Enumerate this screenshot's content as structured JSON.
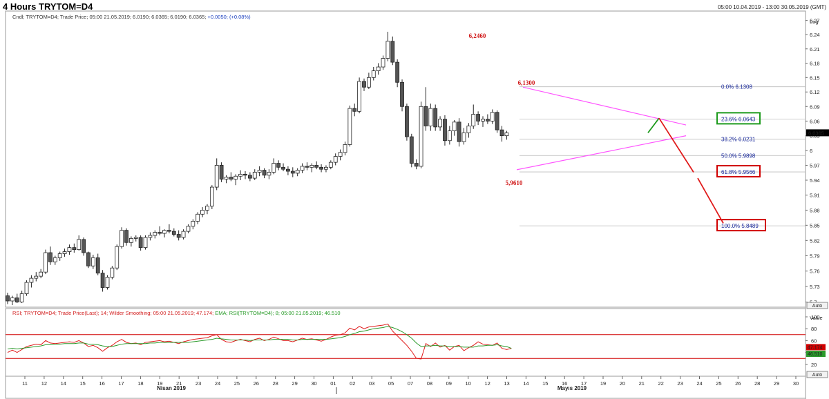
{
  "header": {
    "title": "4 Hours TRYTOM=D4",
    "range": "05:00 10.04.2019 - 13:00 30.05.2019 (GMT)"
  },
  "legend": {
    "price_prefix": "Cndl; TRYTOM=D4; Trade Price; 05:00 21.05.2019; 6.0190; 6.0365; 6.0190; 6.0365;",
    "price_change": "+0.0050; (+0.08%)",
    "rsi_text": "RSI; TRYTOM=D4; Trade Price(Last); 14; Wilder Smoothing; 05:00 21.05.2019; 47.174;",
    "ema_text": "EMA; RSI(TRYTOM=D4); 8; 05:00 21.05.2019; 46.510"
  },
  "colors": {
    "up": "#ffffff",
    "down": "#555555",
    "triangle": "#ff55ff",
    "projection": "#e01c1c",
    "green_leg": "#1c9a1c",
    "rsi": "#e01c1c",
    "ema": "#2b9a2b",
    "fib_box_green": "#1c9a1c",
    "fib_box_red": "#d00000"
  },
  "chart_data": {
    "type": "candlestick",
    "scale": "log",
    "ylim": [
      5.69,
      6.29
    ],
    "y_ticks": [
      5.7,
      5.73,
      5.76,
      5.79,
      5.82,
      5.85,
      5.88,
      5.91,
      5.94,
      5.97,
      6,
      6.03,
      6.06,
      6.09,
      6.12,
      6.15,
      6.18,
      6.21,
      6.24,
      6.27
    ],
    "y_tick_labels": [
      "5.7",
      "5.73",
      "5.76",
      "5.79",
      "5.82",
      "5.85",
      "5.88",
      "5.91",
      "5.94",
      "5.97",
      "6",
      "6.03",
      "6.06",
      "6.09",
      "6.12",
      "6.15",
      "6.18",
      "6.21",
      "6.24",
      "6.27"
    ],
    "axis_label": "Log",
    "last_price_label": "6.0365",
    "auto_label": "Auto",
    "x_labels": [
      "11",
      "12",
      "14",
      "15",
      "16",
      "17",
      "18",
      "19",
      "21",
      "23",
      "24",
      "25",
      "26",
      "28",
      "29",
      "30",
      "01",
      "02",
      "03",
      "05",
      "07",
      "08",
      "09",
      "10",
      "12",
      "13",
      "14",
      "15",
      "16",
      "17",
      "19",
      "20",
      "21",
      "22",
      "23",
      "24",
      "25",
      "26",
      "28",
      "29",
      "30"
    ],
    "month_labels": [
      "Nisan 2019",
      "Mayıs 2019"
    ],
    "candles": [
      [
        5.712,
        5.718,
        5.696,
        5.702
      ],
      [
        5.702,
        5.712,
        5.694,
        5.708
      ],
      [
        5.708,
        5.716,
        5.698,
        5.7
      ],
      [
        5.7,
        5.722,
        5.698,
        5.716
      ],
      [
        5.716,
        5.742,
        5.712,
        5.738
      ],
      [
        5.738,
        5.752,
        5.728,
        5.746
      ],
      [
        5.746,
        5.758,
        5.74,
        5.75
      ],
      [
        5.75,
        5.764,
        5.746,
        5.758
      ],
      [
        5.758,
        5.802,
        5.754,
        5.796
      ],
      [
        5.796,
        5.808,
        5.772,
        5.778
      ],
      [
        5.778,
        5.79,
        5.772,
        5.786
      ],
      [
        5.786,
        5.798,
        5.78,
        5.794
      ],
      [
        5.794,
        5.804,
        5.788,
        5.798
      ],
      [
        5.798,
        5.812,
        5.792,
        5.806
      ],
      [
        5.806,
        5.814,
        5.796,
        5.802
      ],
      [
        5.802,
        5.83,
        5.8,
        5.822
      ],
      [
        5.822,
        5.826,
        5.79,
        5.796
      ],
      [
        5.796,
        5.798,
        5.766,
        5.77
      ],
      [
        5.77,
        5.792,
        5.764,
        5.786
      ],
      [
        5.786,
        5.794,
        5.752,
        5.756
      ],
      [
        5.756,
        5.762,
        5.72,
        5.728
      ],
      [
        5.728,
        5.752,
        5.724,
        5.748
      ],
      [
        5.748,
        5.77,
        5.744,
        5.766
      ],
      [
        5.766,
        5.812,
        5.762,
        5.808
      ],
      [
        5.808,
        5.846,
        5.804,
        5.84
      ],
      [
        5.84,
        5.844,
        5.81,
        5.816
      ],
      [
        5.816,
        5.828,
        5.808,
        5.824
      ],
      [
        5.824,
        5.83,
        5.818,
        5.826
      ],
      [
        5.826,
        5.83,
        5.8,
        5.806
      ],
      [
        5.806,
        5.83,
        5.802,
        5.826
      ],
      [
        5.826,
        5.836,
        5.82,
        5.83
      ],
      [
        5.83,
        5.84,
        5.824,
        5.836
      ],
      [
        5.836,
        5.848,
        5.83,
        5.834
      ],
      [
        5.834,
        5.842,
        5.826,
        5.84
      ],
      [
        5.84,
        5.852,
        5.834,
        5.838
      ],
      [
        5.838,
        5.844,
        5.828,
        5.832
      ],
      [
        5.832,
        5.84,
        5.82,
        5.826
      ],
      [
        5.826,
        5.842,
        5.822,
        5.838
      ],
      [
        5.838,
        5.852,
        5.834,
        5.848
      ],
      [
        5.848,
        5.862,
        5.842,
        5.858
      ],
      [
        5.858,
        5.876,
        5.852,
        5.872
      ],
      [
        5.872,
        5.886,
        5.866,
        5.88
      ],
      [
        5.88,
        5.892,
        5.872,
        5.888
      ],
      [
        5.888,
        5.93,
        5.882,
        5.926
      ],
      [
        5.926,
        5.984,
        5.92,
        5.97
      ],
      [
        5.97,
        5.976,
        5.936,
        5.942
      ],
      [
        5.942,
        5.95,
        5.934,
        5.946
      ],
      [
        5.946,
        5.956,
        5.938,
        5.942
      ],
      [
        5.942,
        5.952,
        5.93,
        5.948
      ],
      [
        5.948,
        5.96,
        5.94,
        5.952
      ],
      [
        5.952,
        5.958,
        5.942,
        5.95
      ],
      [
        5.95,
        5.956,
        5.938,
        5.944
      ],
      [
        5.944,
        5.962,
        5.94,
        5.956
      ],
      [
        5.956,
        5.968,
        5.948,
        5.96
      ],
      [
        5.96,
        5.964,
        5.944,
        5.95
      ],
      [
        5.95,
        5.962,
        5.942,
        5.956
      ],
      [
        5.956,
        5.984,
        5.952,
        5.974
      ],
      [
        5.974,
        5.98,
        5.96,
        5.966
      ],
      [
        5.966,
        5.974,
        5.958,
        5.962
      ],
      [
        5.962,
        5.968,
        5.95,
        5.958
      ],
      [
        5.958,
        5.966,
        5.946,
        5.954
      ],
      [
        5.954,
        5.964,
        5.948,
        5.96
      ],
      [
        5.96,
        5.974,
        5.954,
        5.968
      ],
      [
        5.968,
        5.976,
        5.96,
        5.966
      ],
      [
        5.966,
        5.974,
        5.956,
        5.97
      ],
      [
        5.97,
        5.978,
        5.962,
        5.966
      ],
      [
        5.966,
        5.972,
        5.956,
        5.962
      ],
      [
        5.962,
        5.97,
        5.956,
        5.966
      ],
      [
        5.966,
        5.98,
        5.962,
        5.976
      ],
      [
        5.976,
        5.994,
        5.97,
        5.988
      ],
      [
        5.988,
        6.002,
        5.98,
        5.996
      ],
      [
        5.996,
        6.018,
        5.99,
        6.012
      ],
      [
        6.012,
        6.092,
        6.008,
        6.086
      ],
      [
        6.086,
        6.096,
        6.07,
        6.08
      ],
      [
        6.08,
        6.15,
        6.076,
        6.142
      ],
      [
        6.142,
        6.148,
        6.122,
        6.13
      ],
      [
        6.13,
        6.16,
        6.126,
        6.15
      ],
      [
        6.15,
        6.172,
        6.144,
        6.164
      ],
      [
        6.164,
        6.18,
        6.156,
        6.172
      ],
      [
        6.172,
        6.196,
        6.166,
        6.19
      ],
      [
        6.19,
        6.246,
        6.184,
        6.226
      ],
      [
        6.226,
        6.236,
        6.176,
        6.182
      ],
      [
        6.182,
        6.188,
        6.13,
        6.14
      ],
      [
        6.14,
        6.146,
        6.08,
        6.09
      ],
      [
        6.09,
        6.096,
        6.02,
        6.028
      ],
      [
        6.028,
        6.034,
        5.966,
        5.974
      ],
      [
        5.974,
        5.982,
        5.962,
        5.968
      ],
      [
        5.968,
        6.1,
        5.964,
        6.09
      ],
      [
        6.09,
        6.13,
        6.04,
        6.05
      ],
      [
        6.05,
        6.096,
        6.04,
        6.086
      ],
      [
        6.086,
        6.094,
        6.04,
        6.048
      ],
      [
        6.048,
        6.07,
        6.04,
        6.064
      ],
      [
        6.064,
        6.072,
        6.01,
        6.02
      ],
      [
        6.02,
        6.05,
        6.012,
        6.04
      ],
      [
        6.04,
        6.062,
        6.03,
        6.058
      ],
      [
        6.058,
        6.066,
        6.008,
        6.018
      ],
      [
        6.018,
        6.046,
        6.012,
        6.036
      ],
      [
        6.036,
        6.056,
        6.026,
        6.05
      ],
      [
        6.05,
        6.094,
        6.044,
        6.074
      ],
      [
        6.074,
        6.08,
        6.052,
        6.06
      ],
      [
        6.06,
        6.07,
        6.048,
        6.064
      ],
      [
        6.064,
        6.074,
        6.054,
        6.06
      ],
      [
        6.06,
        6.084,
        6.054,
        6.078
      ],
      [
        6.078,
        6.082,
        6.036,
        6.042
      ],
      [
        6.042,
        6.05,
        6.018,
        6.03
      ],
      [
        6.03,
        6.04,
        6.022,
        6.036
      ]
    ],
    "rsi": [
      40,
      44,
      40,
      45,
      50,
      52,
      54,
      53,
      60,
      56,
      55,
      56,
      57,
      58,
      57,
      60,
      56,
      50,
      52,
      48,
      42,
      48,
      52,
      58,
      62,
      57,
      55,
      56,
      53,
      57,
      58,
      59,
      60,
      58,
      59,
      57,
      55,
      58,
      60,
      62,
      63,
      64,
      65,
      68,
      70,
      62,
      58,
      57,
      60,
      62,
      60,
      58,
      62,
      64,
      60,
      62,
      66,
      63,
      60,
      60,
      58,
      61,
      64,
      62,
      63,
      61,
      59,
      62,
      66,
      69,
      70,
      73,
      81,
      78,
      84,
      80,
      83,
      84,
      85,
      86,
      88,
      76,
      68,
      60,
      52,
      42,
      30,
      29,
      55,
      50,
      56,
      49,
      52,
      44,
      50,
      52,
      43,
      48,
      52,
      58,
      54,
      53,
      52,
      56,
      47,
      45,
      47
    ],
    "ema": [
      46,
      47,
      46,
      47,
      48,
      49,
      50,
      51,
      53,
      53,
      54,
      54,
      55,
      55,
      55,
      56,
      56,
      54,
      54,
      53,
      51,
      50,
      50,
      52,
      54,
      55,
      55,
      55,
      55,
      55,
      56,
      56,
      57,
      57,
      57,
      57,
      57,
      57,
      57,
      58,
      59,
      60,
      61,
      62,
      64,
      63,
      62,
      61,
      61,
      61,
      61,
      60,
      61,
      61,
      61,
      61,
      62,
      62,
      62,
      62,
      61,
      61,
      62,
      62,
      62,
      62,
      62,
      62,
      63,
      64,
      65,
      67,
      70,
      72,
      75,
      76,
      78,
      80,
      81,
      82,
      84,
      82,
      79,
      75,
      70,
      64,
      56,
      50,
      51,
      51,
      52,
      51,
      51,
      50,
      50,
      50,
      49,
      49,
      49,
      51,
      51,
      52,
      52,
      53,
      51,
      50,
      47
    ],
    "rsi_value_label": "47.174",
    "ema_value_label": "46.510",
    "rsi_levels": [
      70,
      30
    ],
    "rsi_ticks": [
      20,
      40,
      60,
      80,
      100
    ],
    "rsi_axis_label": "Value",
    "annotations": {
      "high_label": "6,2460",
      "peak2_label": "6,1300",
      "low_label": "5,9610"
    },
    "fibonacci": [
      {
        "level": "0.0%",
        "price": "6.1308",
        "value": 6.1308,
        "box": ""
      },
      {
        "level": "23.6%",
        "price": "6.0643",
        "value": 6.0643,
        "box": "green"
      },
      {
        "level": "38.2%",
        "price": "6.0231",
        "value": 6.0231,
        "box": ""
      },
      {
        "level": "50.0%",
        "price": "5.9898",
        "value": 5.9898,
        "box": ""
      },
      {
        "level": "61.8%",
        "price": "5.9566",
        "value": 5.9566,
        "box": "red"
      },
      {
        "level": "100.0%",
        "price": "5.8489",
        "value": 5.8489,
        "box": "red"
      }
    ]
  }
}
